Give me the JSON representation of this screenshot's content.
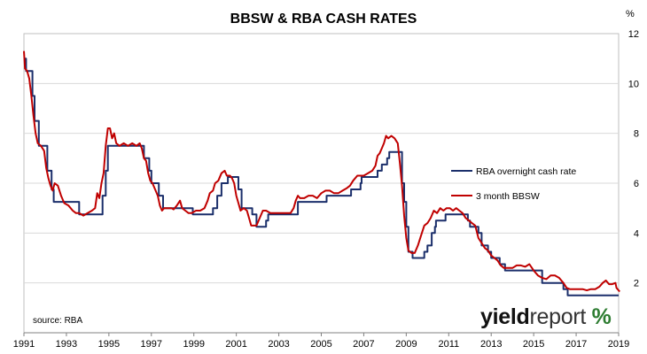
{
  "chart_data": {
    "type": "line",
    "title": "BBSW & RBA CASH RATES",
    "unit": "%",
    "source": "source: RBA",
    "xlim": [
      1991,
      2019
    ],
    "ylim": [
      0,
      12
    ],
    "x_ticks": [
      "1991",
      "1993",
      "1995",
      "1997",
      "1999",
      "2001",
      "2003",
      "2005",
      "2007",
      "2009",
      "2011",
      "2013",
      "2015",
      "2017",
      "2019"
    ],
    "y_ticks": [
      "2",
      "4",
      "6",
      "8",
      "10",
      "12"
    ],
    "gridlines": "horizontal",
    "legend_position": "right-center",
    "series": [
      {
        "name": "RBA overnight cash rate",
        "color": "#1b2f6b",
        "step": true,
        "points": [
          [
            1991.0,
            11.0
          ],
          [
            1991.1,
            10.5
          ],
          [
            1991.4,
            9.5
          ],
          [
            1991.5,
            8.5
          ],
          [
            1991.7,
            7.5
          ],
          [
            1992.0,
            7.5
          ],
          [
            1992.1,
            6.5
          ],
          [
            1992.3,
            5.75
          ],
          [
            1992.4,
            5.25
          ],
          [
            1993.2,
            5.25
          ],
          [
            1993.6,
            4.75
          ],
          [
            1994.6,
            4.75
          ],
          [
            1994.7,
            5.5
          ],
          [
            1994.85,
            6.5
          ],
          [
            1994.95,
            7.5
          ],
          [
            1996.6,
            7.5
          ],
          [
            1996.65,
            7.0
          ],
          [
            1996.9,
            6.5
          ],
          [
            1997.0,
            6.0
          ],
          [
            1997.35,
            5.5
          ],
          [
            1997.55,
            5.0
          ],
          [
            1998.9,
            5.0
          ],
          [
            1998.95,
            4.75
          ],
          [
            1999.85,
            4.75
          ],
          [
            1999.9,
            5.0
          ],
          [
            2000.1,
            5.5
          ],
          [
            2000.3,
            6.0
          ],
          [
            2000.6,
            6.25
          ],
          [
            2001.0,
            6.25
          ],
          [
            2001.1,
            5.75
          ],
          [
            2001.25,
            5.0
          ],
          [
            2001.75,
            4.75
          ],
          [
            2001.95,
            4.25
          ],
          [
            2002.35,
            4.25
          ],
          [
            2002.4,
            4.5
          ],
          [
            2002.5,
            4.75
          ],
          [
            2003.85,
            4.75
          ],
          [
            2003.9,
            5.25
          ],
          [
            2005.2,
            5.25
          ],
          [
            2005.25,
            5.5
          ],
          [
            2006.35,
            5.5
          ],
          [
            2006.4,
            5.75
          ],
          [
            2006.85,
            6.0
          ],
          [
            2006.9,
            6.25
          ],
          [
            2007.6,
            6.25
          ],
          [
            2007.65,
            6.5
          ],
          [
            2007.85,
            6.75
          ],
          [
            2008.1,
            7.0
          ],
          [
            2008.2,
            7.25
          ],
          [
            2008.75,
            7.25
          ],
          [
            2008.8,
            6.0
          ],
          [
            2008.9,
            5.25
          ],
          [
            2009.0,
            4.25
          ],
          [
            2009.1,
            3.25
          ],
          [
            2009.3,
            3.0
          ],
          [
            2009.8,
            3.0
          ],
          [
            2009.85,
            3.25
          ],
          [
            2010.0,
            3.5
          ],
          [
            2010.2,
            4.0
          ],
          [
            2010.35,
            4.25
          ],
          [
            2010.4,
            4.5
          ],
          [
            2010.85,
            4.75
          ],
          [
            2011.85,
            4.75
          ],
          [
            2011.9,
            4.5
          ],
          [
            2012.0,
            4.25
          ],
          [
            2012.4,
            4.0
          ],
          [
            2012.55,
            3.5
          ],
          [
            2012.85,
            3.25
          ],
          [
            2013.0,
            3.0
          ],
          [
            2013.4,
            2.75
          ],
          [
            2013.65,
            2.5
          ],
          [
            2015.1,
            2.5
          ],
          [
            2015.4,
            2.0
          ],
          [
            2016.35,
            2.0
          ],
          [
            2016.4,
            1.75
          ],
          [
            2016.6,
            1.5
          ],
          [
            2019.0,
            1.5
          ]
        ]
      },
      {
        "name": "3 month BBSW",
        "color": "#c00000",
        "step": false,
        "points": [
          [
            1991.0,
            11.3
          ],
          [
            1991.05,
            10.6
          ],
          [
            1991.15,
            10.5
          ],
          [
            1991.25,
            10.2
          ],
          [
            1991.35,
            9.5
          ],
          [
            1991.45,
            8.7
          ],
          [
            1991.55,
            8.0
          ],
          [
            1991.65,
            7.6
          ],
          [
            1991.8,
            7.5
          ],
          [
            1991.95,
            7.3
          ],
          [
            1992.05,
            6.6
          ],
          [
            1992.15,
            6.2
          ],
          [
            1992.25,
            5.9
          ],
          [
            1992.35,
            5.7
          ],
          [
            1992.45,
            6.0
          ],
          [
            1992.6,
            5.9
          ],
          [
            1992.75,
            5.5
          ],
          [
            1992.9,
            5.2
          ],
          [
            1993.1,
            5.1
          ],
          [
            1993.3,
            4.9
          ],
          [
            1993.45,
            4.8
          ],
          [
            1993.6,
            4.8
          ],
          [
            1993.8,
            4.7
          ],
          [
            1994.0,
            4.8
          ],
          [
            1994.2,
            4.9
          ],
          [
            1994.35,
            5.0
          ],
          [
            1994.45,
            5.6
          ],
          [
            1994.55,
            5.4
          ],
          [
            1994.65,
            6.0
          ],
          [
            1994.75,
            6.4
          ],
          [
            1994.85,
            7.5
          ],
          [
            1994.95,
            8.2
          ],
          [
            1995.05,
            8.2
          ],
          [
            1995.15,
            7.8
          ],
          [
            1995.25,
            8.0
          ],
          [
            1995.35,
            7.6
          ],
          [
            1995.5,
            7.5
          ],
          [
            1995.7,
            7.6
          ],
          [
            1995.9,
            7.5
          ],
          [
            1996.1,
            7.6
          ],
          [
            1996.3,
            7.5
          ],
          [
            1996.45,
            7.6
          ],
          [
            1996.55,
            7.4
          ],
          [
            1996.65,
            7.0
          ],
          [
            1996.75,
            6.9
          ],
          [
            1996.85,
            6.4
          ],
          [
            1996.95,
            6.1
          ],
          [
            1997.05,
            6.0
          ],
          [
            1997.2,
            5.7
          ],
          [
            1997.3,
            5.5
          ],
          [
            1997.4,
            5.1
          ],
          [
            1997.5,
            4.9
          ],
          [
            1997.6,
            5.0
          ],
          [
            1997.8,
            5.0
          ],
          [
            1997.95,
            5.0
          ],
          [
            1998.05,
            4.95
          ],
          [
            1998.2,
            5.1
          ],
          [
            1998.35,
            5.3
          ],
          [
            1998.45,
            5.0
          ],
          [
            1998.6,
            4.9
          ],
          [
            1998.75,
            4.8
          ],
          [
            1998.9,
            4.8
          ],
          [
            1999.1,
            4.9
          ],
          [
            1999.3,
            4.9
          ],
          [
            1999.5,
            5.0
          ],
          [
            1999.65,
            5.3
          ],
          [
            1999.75,
            5.6
          ],
          [
            1999.9,
            5.7
          ],
          [
            2000.0,
            6.0
          ],
          [
            2000.15,
            6.1
          ],
          [
            2000.3,
            6.4
          ],
          [
            2000.45,
            6.5
          ],
          [
            2000.55,
            6.3
          ],
          [
            2000.7,
            6.3
          ],
          [
            2000.8,
            6.2
          ],
          [
            2000.9,
            6.0
          ],
          [
            2001.0,
            5.5
          ],
          [
            2001.1,
            5.2
          ],
          [
            2001.2,
            4.9
          ],
          [
            2001.35,
            5.0
          ],
          [
            2001.5,
            4.9
          ],
          [
            2001.6,
            4.6
          ],
          [
            2001.7,
            4.3
          ],
          [
            2001.8,
            4.3
          ],
          [
            2001.95,
            4.3
          ],
          [
            2002.1,
            4.6
          ],
          [
            2002.25,
            4.9
          ],
          [
            2002.4,
            4.9
          ],
          [
            2002.6,
            4.8
          ],
          [
            2002.8,
            4.8
          ],
          [
            2003.0,
            4.8
          ],
          [
            2003.2,
            4.8
          ],
          [
            2003.4,
            4.8
          ],
          [
            2003.55,
            4.8
          ],
          [
            2003.7,
            5.0
          ],
          [
            2003.8,
            5.3
          ],
          [
            2003.9,
            5.5
          ],
          [
            2004.0,
            5.4
          ],
          [
            2004.2,
            5.4
          ],
          [
            2004.4,
            5.5
          ],
          [
            2004.6,
            5.5
          ],
          [
            2004.8,
            5.4
          ],
          [
            2005.0,
            5.6
          ],
          [
            2005.2,
            5.7
          ],
          [
            2005.4,
            5.7
          ],
          [
            2005.6,
            5.6
          ],
          [
            2005.8,
            5.6
          ],
          [
            2006.0,
            5.7
          ],
          [
            2006.2,
            5.8
          ],
          [
            2006.35,
            5.9
          ],
          [
            2006.5,
            6.1
          ],
          [
            2006.7,
            6.3
          ],
          [
            2006.85,
            6.3
          ],
          [
            2007.0,
            6.3
          ],
          [
            2007.2,
            6.4
          ],
          [
            2007.4,
            6.5
          ],
          [
            2007.55,
            6.7
          ],
          [
            2007.65,
            7.1
          ],
          [
            2007.75,
            7.2
          ],
          [
            2007.85,
            7.4
          ],
          [
            2007.95,
            7.6
          ],
          [
            2008.05,
            7.9
          ],
          [
            2008.15,
            7.8
          ],
          [
            2008.3,
            7.9
          ],
          [
            2008.45,
            7.8
          ],
          [
            2008.6,
            7.6
          ],
          [
            2008.7,
            6.8
          ],
          [
            2008.8,
            5.9
          ],
          [
            2008.9,
            4.7
          ],
          [
            2009.0,
            3.8
          ],
          [
            2009.1,
            3.3
          ],
          [
            2009.25,
            3.2
          ],
          [
            2009.4,
            3.2
          ],
          [
            2009.55,
            3.5
          ],
          [
            2009.7,
            3.9
          ],
          [
            2009.85,
            4.3
          ],
          [
            2010.0,
            4.4
          ],
          [
            2010.15,
            4.6
          ],
          [
            2010.3,
            4.9
          ],
          [
            2010.45,
            4.8
          ],
          [
            2010.6,
            5.0
          ],
          [
            2010.75,
            4.9
          ],
          [
            2010.9,
            5.0
          ],
          [
            2011.05,
            5.0
          ],
          [
            2011.2,
            4.9
          ],
          [
            2011.35,
            5.0
          ],
          [
            2011.5,
            4.9
          ],
          [
            2011.65,
            4.8
          ],
          [
            2011.8,
            4.6
          ],
          [
            2011.95,
            4.5
          ],
          [
            2012.1,
            4.4
          ],
          [
            2012.25,
            4.3
          ],
          [
            2012.4,
            3.8
          ],
          [
            2012.55,
            3.6
          ],
          [
            2012.7,
            3.4
          ],
          [
            2012.85,
            3.3
          ],
          [
            2013.0,
            3.1
          ],
          [
            2013.15,
            3.0
          ],
          [
            2013.3,
            2.9
          ],
          [
            2013.45,
            2.7
          ],
          [
            2013.6,
            2.6
          ],
          [
            2013.8,
            2.6
          ],
          [
            2014.0,
            2.6
          ],
          [
            2014.2,
            2.7
          ],
          [
            2014.4,
            2.7
          ],
          [
            2014.6,
            2.65
          ],
          [
            2014.8,
            2.75
          ],
          [
            2015.0,
            2.5
          ],
          [
            2015.2,
            2.3
          ],
          [
            2015.4,
            2.2
          ],
          [
            2015.6,
            2.15
          ],
          [
            2015.8,
            2.3
          ],
          [
            2016.0,
            2.3
          ],
          [
            2016.2,
            2.2
          ],
          [
            2016.4,
            2.0
          ],
          [
            2016.55,
            1.8
          ],
          [
            2016.7,
            1.75
          ],
          [
            2016.9,
            1.75
          ],
          [
            2017.1,
            1.75
          ],
          [
            2017.3,
            1.75
          ],
          [
            2017.5,
            1.7
          ],
          [
            2017.7,
            1.75
          ],
          [
            2017.9,
            1.75
          ],
          [
            2018.1,
            1.85
          ],
          [
            2018.25,
            2.0
          ],
          [
            2018.4,
            2.1
          ],
          [
            2018.55,
            1.95
          ],
          [
            2018.7,
            1.95
          ],
          [
            2018.85,
            2.0
          ],
          [
            2018.9,
            1.8
          ],
          [
            2019.0,
            1.7
          ],
          [
            2019.05,
            1.65
          ]
        ]
      }
    ]
  },
  "branding": {
    "logo_word1": "yield",
    "logo_word2": "report",
    "logo_symbol": "%"
  }
}
